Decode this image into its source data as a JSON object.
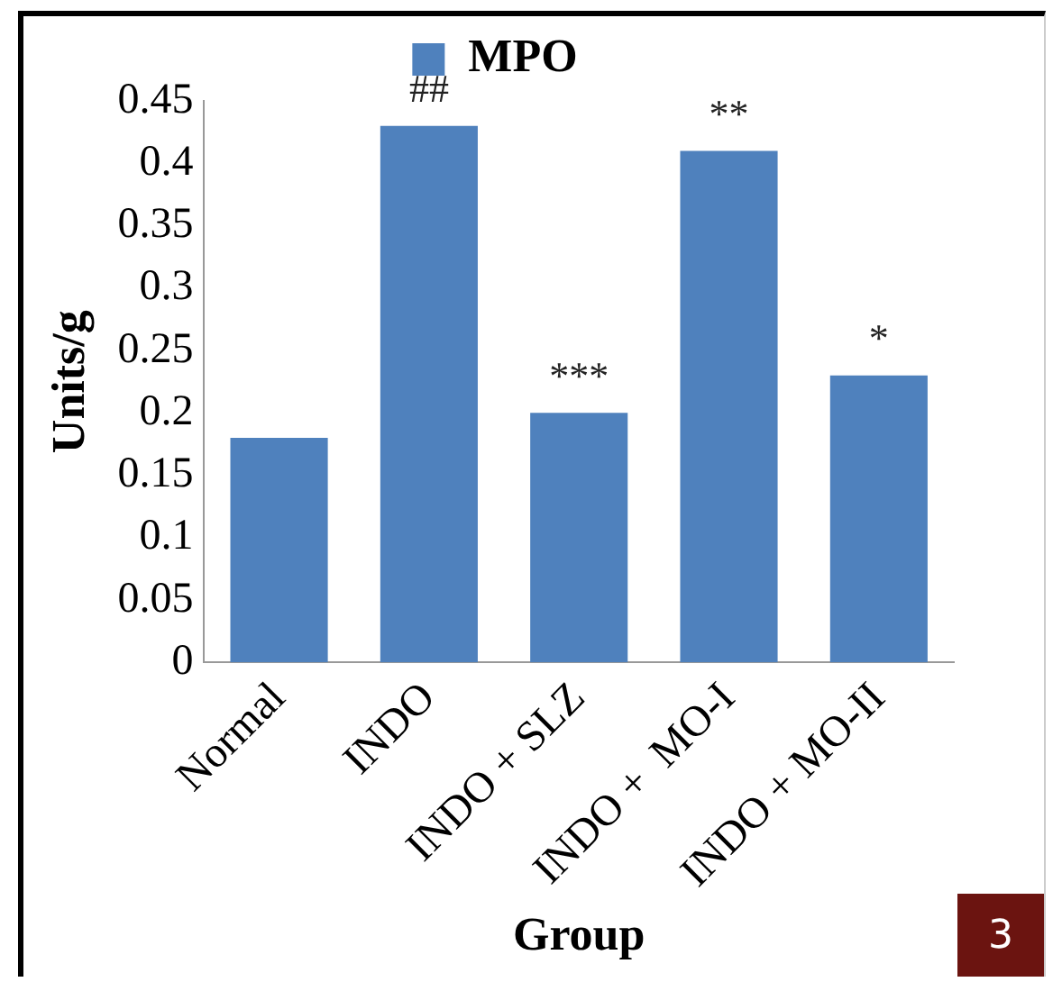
{
  "chart_data": {
    "type": "bar",
    "xlabel": "Group",
    "ylabel": "Units/g",
    "categories": [
      "Normal",
      "INDO",
      "INDO + SLZ",
      "INDO +  MO-I",
      "INDO + MO-II"
    ],
    "series": [
      {
        "name": "MPO",
        "color": "#4f81bd",
        "values": [
          0.18,
          0.43,
          0.2,
          0.41,
          0.23
        ]
      }
    ],
    "ylim": [
      0,
      0.45
    ],
    "yticks": [
      0,
      0.05,
      0.1,
      0.15,
      0.2,
      0.25,
      0.3,
      0.35,
      0.4,
      0.45
    ],
    "grid": false,
    "legend": "top",
    "annotations": [
      {
        "text": "##",
        "x": "INDO",
        "y": 0.43
      },
      {
        "text": "***",
        "x": "INDO + SLZ",
        "y": 0.2
      },
      {
        "text": "**",
        "x": "INDO +  MO-I",
        "y": 0.41
      },
      {
        "text": "*",
        "x": "INDO + MO-II",
        "y": 0.23
      },
      "3"
    ]
  }
}
